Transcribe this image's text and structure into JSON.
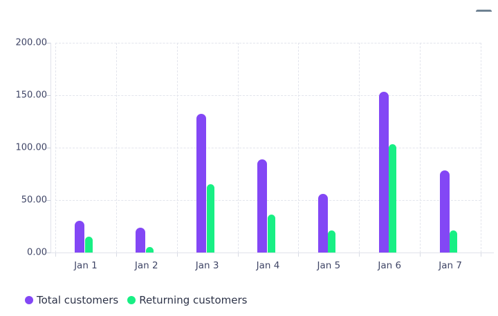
{
  "toolbar": {
    "menu_icon_color": "#6e8192"
  },
  "chart_data": {
    "type": "bar",
    "categories": [
      "Jan 1",
      "Jan 2",
      "Jan 3",
      "Jan 4",
      "Jan 5",
      "Jan 6",
      "Jan 7"
    ],
    "series": [
      {
        "name": "Total customers",
        "color": "#8347f5",
        "values": [
          30,
          24,
          132,
          89,
          56,
          153,
          78
        ]
      },
      {
        "name": "Returning customers",
        "color": "#18ef84",
        "values": [
          15,
          5,
          65,
          36,
          21,
          103,
          21
        ]
      }
    ],
    "ylim": [
      0,
      200
    ],
    "yticks": [
      0,
      50,
      100,
      150,
      200
    ],
    "ytick_labels": [
      "0.00",
      "50.00",
      "100.00",
      "150.00",
      "200.00"
    ],
    "grid": "dashed",
    "legend_position": "bottom-left"
  },
  "colors": {
    "axis_label": "#3f4566",
    "legend_label": "#2d3348",
    "gridline": "#e2e4ec"
  }
}
